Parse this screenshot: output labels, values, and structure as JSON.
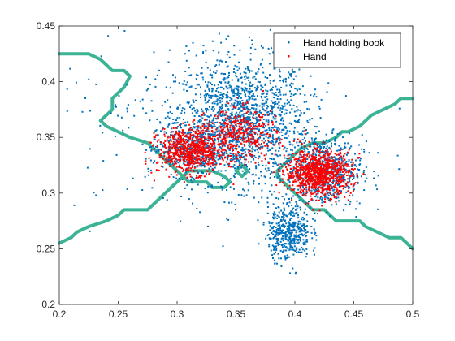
{
  "chart_data": {
    "type": "scatter",
    "title": "",
    "xlabel": "",
    "ylabel": "",
    "xlim": [
      0.2,
      0.5
    ],
    "ylim": [
      0.2,
      0.45
    ],
    "x_ticks": [
      "0.2",
      "0.25",
      "0.3",
      "0.35",
      "0.4",
      "0.45",
      "0.5"
    ],
    "y_ticks": [
      "0.2",
      "0.25",
      "0.3",
      "0.35",
      "0.4",
      "0.45"
    ],
    "grid": false,
    "legend_position": "top-right",
    "series": [
      {
        "name": "Hand holding book",
        "color": "#0072BD",
        "clusters": [
          {
            "cx": 0.355,
            "cy": 0.365,
            "sx": 0.028,
            "sy": 0.028,
            "n": 1400
          },
          {
            "cx": 0.425,
            "cy": 0.32,
            "sx": 0.016,
            "sy": 0.016,
            "n": 600
          },
          {
            "cx": 0.31,
            "cy": 0.34,
            "sx": 0.016,
            "sy": 0.012,
            "n": 350
          },
          {
            "cx": 0.395,
            "cy": 0.265,
            "sx": 0.009,
            "sy": 0.012,
            "n": 450
          },
          {
            "cx": 0.33,
            "cy": 0.36,
            "sx": 0.07,
            "sy": 0.04,
            "n": 250
          }
        ]
      },
      {
        "name": "Hand",
        "color": "#FF0000",
        "clusters": [
          {
            "cx": 0.312,
            "cy": 0.338,
            "sx": 0.014,
            "sy": 0.01,
            "n": 700
          },
          {
            "cx": 0.42,
            "cy": 0.318,
            "sx": 0.014,
            "sy": 0.01,
            "n": 950
          },
          {
            "cx": 0.355,
            "cy": 0.352,
            "sx": 0.015,
            "sy": 0.012,
            "n": 350
          }
        ]
      }
    ],
    "boundaries": {
      "color": "#3CB394",
      "lines": [
        [
          [
            0.2,
            0.425
          ],
          [
            0.225,
            0.425
          ],
          [
            0.235,
            0.42
          ],
          [
            0.24,
            0.415
          ],
          [
            0.245,
            0.41
          ],
          [
            0.255,
            0.41
          ],
          [
            0.26,
            0.405
          ],
          [
            0.255,
            0.395
          ],
          [
            0.25,
            0.39
          ],
          [
            0.245,
            0.385
          ],
          [
            0.245,
            0.375
          ],
          [
            0.24,
            0.37
          ],
          [
            0.235,
            0.365
          ],
          [
            0.24,
            0.36
          ],
          [
            0.25,
            0.355
          ],
          [
            0.26,
            0.35
          ],
          [
            0.275,
            0.345
          ],
          [
            0.28,
            0.34
          ],
          [
            0.285,
            0.335
          ],
          [
            0.29,
            0.33
          ],
          [
            0.295,
            0.325
          ],
          [
            0.3,
            0.32
          ],
          [
            0.305,
            0.315
          ],
          [
            0.31,
            0.31
          ],
          [
            0.325,
            0.31
          ],
          [
            0.33,
            0.305
          ],
          [
            0.34,
            0.305
          ],
          [
            0.345,
            0.31
          ],
          [
            0.34,
            0.315
          ],
          [
            0.33,
            0.32
          ],
          [
            0.315,
            0.32
          ],
          [
            0.31,
            0.32
          ],
          [
            0.305,
            0.315
          ],
          [
            0.3,
            0.31
          ],
          [
            0.295,
            0.305
          ],
          [
            0.29,
            0.3
          ],
          [
            0.285,
            0.295
          ],
          [
            0.28,
            0.29
          ],
          [
            0.275,
            0.285
          ],
          [
            0.255,
            0.285
          ],
          [
            0.25,
            0.28
          ],
          [
            0.24,
            0.275
          ],
          [
            0.225,
            0.27
          ],
          [
            0.215,
            0.265
          ],
          [
            0.21,
            0.26
          ],
          [
            0.2,
            0.255
          ]
        ],
        [
          [
            0.35,
            0.32
          ],
          [
            0.355,
            0.315
          ],
          [
            0.36,
            0.32
          ],
          [
            0.355,
            0.325
          ],
          [
            0.35,
            0.32
          ]
        ],
        [
          [
            0.5,
            0.385
          ],
          [
            0.49,
            0.385
          ],
          [
            0.485,
            0.38
          ],
          [
            0.475,
            0.375
          ],
          [
            0.465,
            0.37
          ],
          [
            0.46,
            0.365
          ],
          [
            0.455,
            0.36
          ],
          [
            0.445,
            0.355
          ],
          [
            0.44,
            0.355
          ],
          [
            0.435,
            0.35
          ],
          [
            0.425,
            0.345
          ],
          [
            0.415,
            0.345
          ],
          [
            0.405,
            0.34
          ],
          [
            0.4,
            0.335
          ],
          [
            0.395,
            0.33
          ],
          [
            0.39,
            0.325
          ],
          [
            0.385,
            0.32
          ],
          [
            0.385,
            0.315
          ],
          [
            0.39,
            0.31
          ],
          [
            0.395,
            0.305
          ],
          [
            0.4,
            0.3
          ],
          [
            0.405,
            0.295
          ],
          [
            0.41,
            0.29
          ],
          [
            0.415,
            0.285
          ],
          [
            0.425,
            0.285
          ],
          [
            0.43,
            0.28
          ],
          [
            0.435,
            0.275
          ],
          [
            0.455,
            0.275
          ],
          [
            0.46,
            0.27
          ],
          [
            0.47,
            0.265
          ],
          [
            0.48,
            0.26
          ],
          [
            0.49,
            0.26
          ],
          [
            0.495,
            0.255
          ],
          [
            0.5,
            0.25
          ]
        ]
      ]
    }
  }
}
